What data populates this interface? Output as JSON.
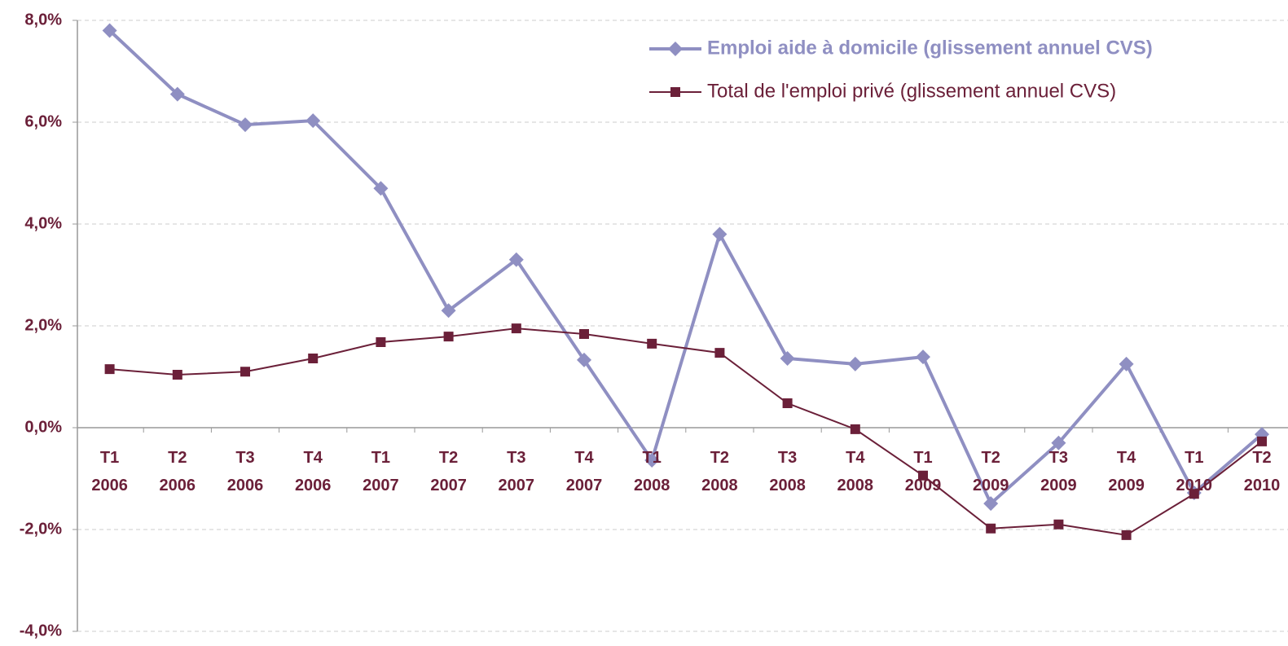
{
  "chart_data": {
    "type": "line",
    "categories": [
      "T1 2006",
      "T2 2006",
      "T3 2006",
      "T4 2006",
      "T1 2007",
      "T2 2007",
      "T3 2007",
      "T4 2007",
      "T1 2008",
      "T2 2008",
      "T3 2008",
      "T4 2008",
      "T1 2009",
      "T2 2009",
      "T3 2009",
      "T4 2009",
      "T1 2010",
      "T2 2010"
    ],
    "series": [
      {
        "name": "Emploi aide à domicile (glissement annuel CVS)",
        "color": "#8f8fc2",
        "marker": "diamond",
        "values": [
          7.8,
          6.55,
          5.95,
          6.03,
          4.7,
          2.3,
          3.3,
          1.33,
          -0.64,
          3.8,
          1.36,
          1.25,
          1.39,
          -1.49,
          -0.3,
          1.25,
          -1.28,
          -0.13
        ]
      },
      {
        "name": "Total de l'emploi privé (glissement annuel CVS)",
        "color": "#6b2039",
        "marker": "square",
        "values": [
          1.15,
          1.04,
          1.1,
          1.36,
          1.68,
          1.79,
          1.95,
          1.84,
          1.65,
          1.47,
          0.48,
          -0.03,
          -0.94,
          -1.98,
          -1.9,
          -2.11,
          -1.3,
          -0.27
        ]
      }
    ],
    "ylim": [
      -4,
      8
    ],
    "yticks": [
      {
        "value": -4,
        "label": "-4,0%"
      },
      {
        "value": -2,
        "label": "-2,0%"
      },
      {
        "value": 0,
        "label": "0,0%"
      },
      {
        "value": 2,
        "label": "2,0%"
      },
      {
        "value": 4,
        "label": "4,0%"
      },
      {
        "value": 6,
        "label": "6,0%"
      },
      {
        "value": 8,
        "label": "8,0%"
      }
    ],
    "grid": true,
    "legend": "top-right"
  }
}
